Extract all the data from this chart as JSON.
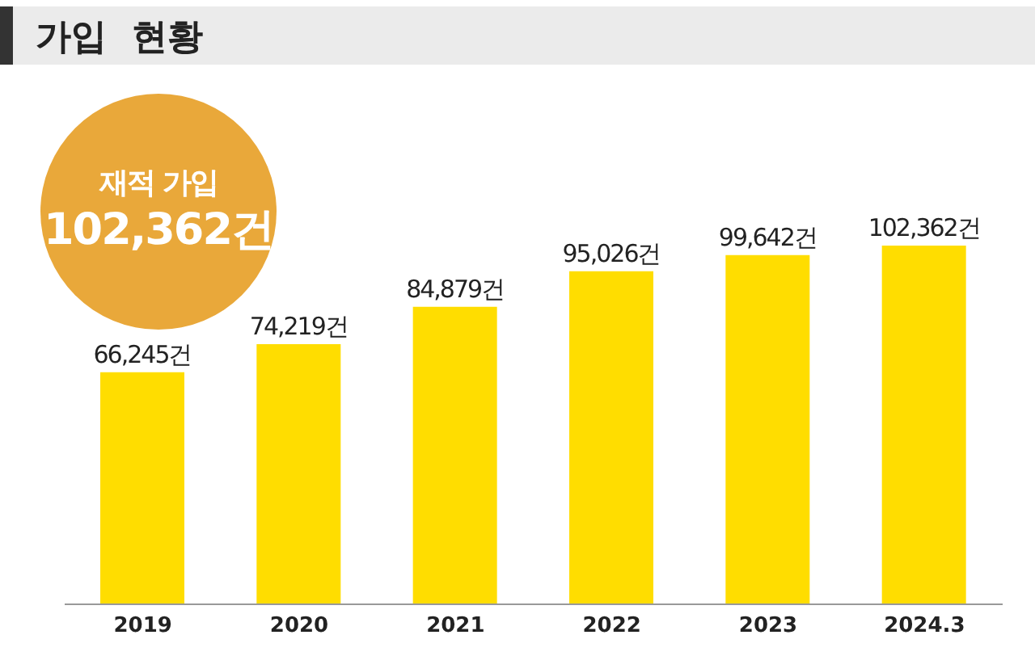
{
  "chart_data": {
    "type": "bar",
    "title": "가입 현황",
    "categories": [
      "2019",
      "2020",
      "2021",
      "2022",
      "2023",
      "2024.3"
    ],
    "values": [
      66245,
      74219,
      84879,
      95026,
      99642,
      102362
    ],
    "value_labels": [
      "66,245건",
      "74,219건",
      "84,879건",
      "95,026건",
      "99,642건",
      "102,362건"
    ],
    "color": "#ffdd00",
    "annotations": [
      "재적 가입",
      "102,362건"
    ]
  }
}
